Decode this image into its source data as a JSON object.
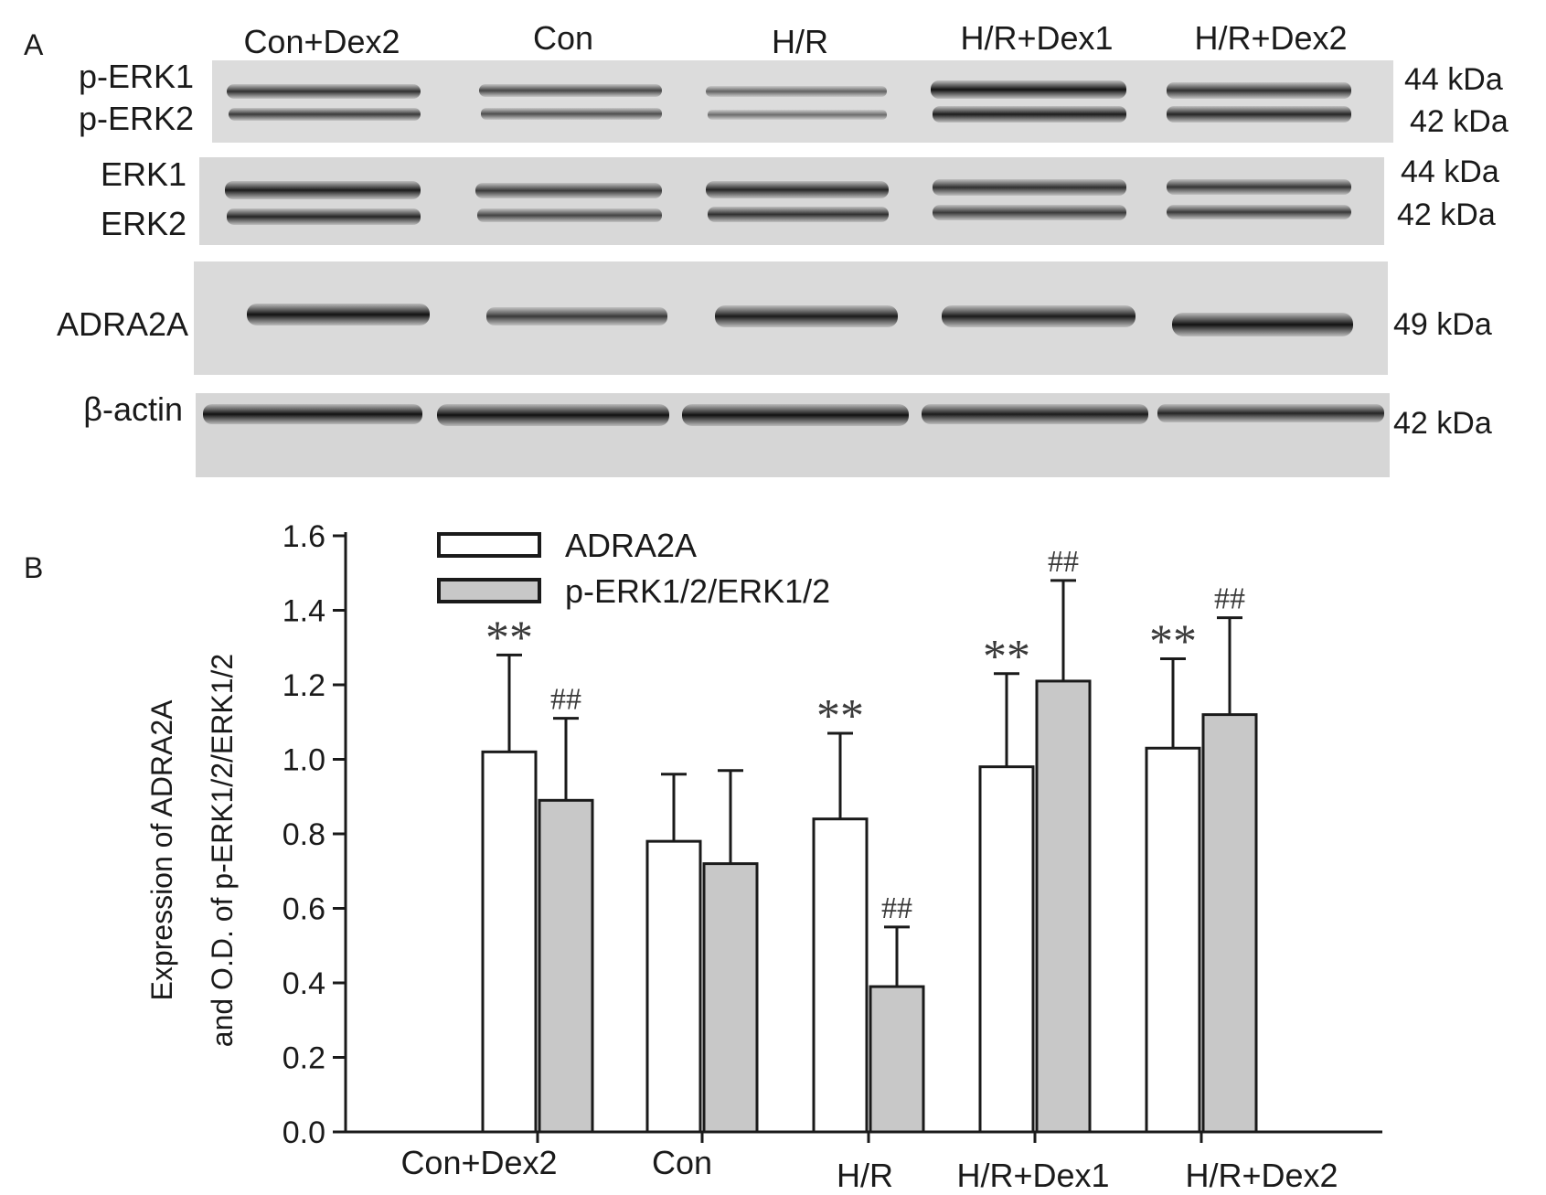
{
  "panel_a": {
    "label": "A",
    "lanes": [
      "Con+Dex2",
      "Con",
      "H/R",
      "H/R+Dex1",
      "H/R+Dex2"
    ],
    "blots": [
      {
        "labels": [
          "p-ERK1",
          "p-ERK2"
        ],
        "sizes": [
          "44 kDa",
          "42 kDa"
        ]
      },
      {
        "labels": [
          "ERK1",
          "ERK2"
        ],
        "sizes": [
          "44 kDa",
          "42 kDa"
        ]
      },
      {
        "labels": [
          "ADRA2A"
        ],
        "sizes": [
          "49 kDa"
        ]
      },
      {
        "labels": [
          "β-actin"
        ],
        "sizes": [
          "42 kDa"
        ]
      }
    ]
  },
  "panel_b": {
    "label": "B"
  },
  "chart_data": {
    "type": "bar",
    "categories": [
      "Con+Dex2",
      "Con",
      "H/R",
      "H/R+Dex1",
      "H/R+Dex2"
    ],
    "series": [
      {
        "name": "ADRA2A",
        "values": [
          1.02,
          0.78,
          0.84,
          0.98,
          1.03
        ],
        "errors": [
          0.26,
          0.18,
          0.23,
          0.25,
          0.24
        ],
        "significance": [
          "**",
          "",
          "**",
          "**",
          "**"
        ],
        "color": "#ffffff"
      },
      {
        "name": "p-ERK1/2/ERK1/2",
        "values": [
          0.89,
          0.72,
          0.39,
          1.21,
          1.12
        ],
        "errors": [
          0.22,
          0.25,
          0.16,
          0.27,
          0.26
        ],
        "significance": [
          "##",
          "",
          "##",
          "##",
          "##"
        ],
        "color": "#c8c8c8"
      }
    ],
    "ylabel_line1": "Expression of ADRA2A",
    "ylabel_line2": "and O.D. of p-ERK1/2/ERK1/2",
    "ylim": [
      0,
      1.6
    ],
    "yticks": [
      "0.0",
      "0.2",
      "0.4",
      "0.6",
      "0.8",
      "1.0",
      "1.2",
      "1.4",
      "1.6"
    ],
    "legend_position": "top-left",
    "grid": false
  }
}
